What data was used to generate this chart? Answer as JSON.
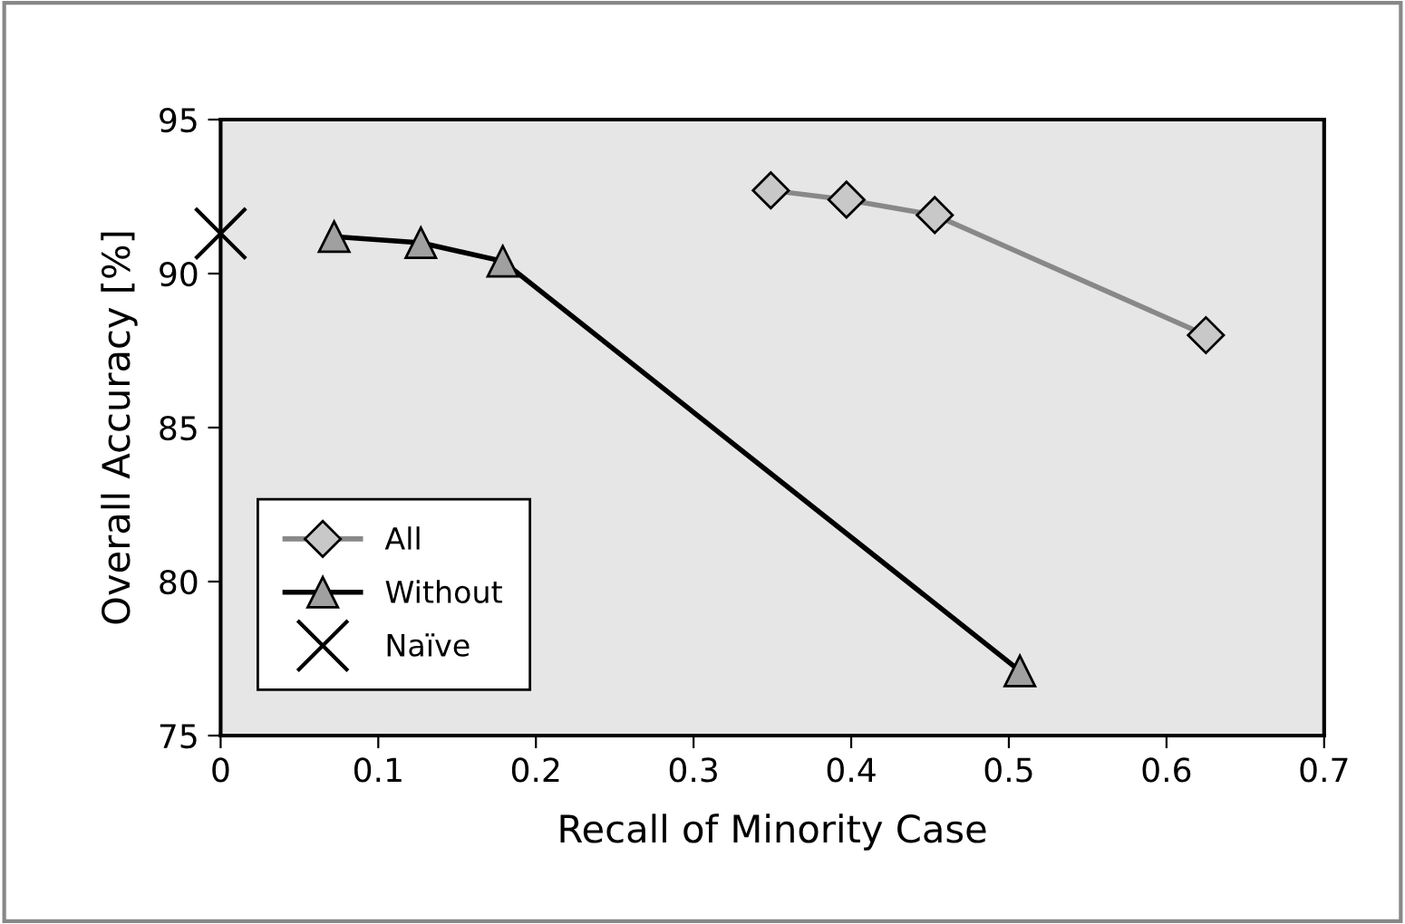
{
  "chart_data": {
    "type": "line",
    "xlabel": "Recall of Minority Case",
    "ylabel": "Overall Accuracy [%]",
    "xlim": [
      0,
      0.7
    ],
    "xticks": [
      0,
      0.1,
      0.2,
      0.3,
      0.4,
      0.5,
      0.6,
      0.7
    ],
    "ylim": [
      75,
      95
    ],
    "yticks": [
      75,
      80,
      85,
      90,
      95
    ],
    "grid": false,
    "legend": "bottom left",
    "series": [
      {
        "name": "All",
        "color": "#888888",
        "marker": "diamond",
        "x": [
          0.349,
          0.397,
          0.453,
          0.625
        ],
        "values": [
          92.7,
          92.4,
          91.9,
          88.0
        ]
      },
      {
        "name": "Without",
        "color": "#000000",
        "marker": "triangle",
        "x": [
          0.072,
          0.127,
          0.179,
          0.507
        ],
        "values": [
          91.2,
          91.0,
          90.4,
          77.1
        ]
      },
      {
        "name": "Naïve",
        "type": "scatter",
        "color": "#000000",
        "marker": "cross",
        "x": [
          0
        ],
        "values": [
          91.3
        ]
      }
    ]
  }
}
